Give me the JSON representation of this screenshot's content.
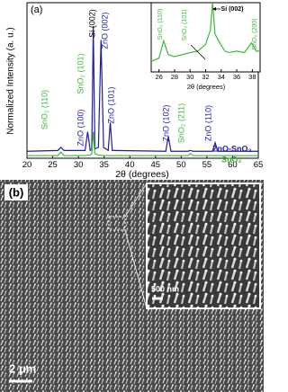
{
  "chart_data": [
    {
      "type": "line",
      "panel_label": "(a)",
      "x_label": "2θ (degrees)",
      "y_label": "Normalized Intensity (a. u.)",
      "xlim": [
        20,
        65
      ],
      "xticks": [
        20,
        25,
        30,
        35,
        40,
        45,
        50,
        55,
        60,
        65
      ],
      "ylim": [
        0,
        1
      ],
      "x": [
        20,
        26.0,
        26.6,
        27.2,
        31.3,
        31.8,
        32.3,
        32.6,
        32.9,
        33.2,
        33.9,
        34.4,
        34.9,
        35.8,
        36.2,
        36.6,
        47.0,
        47.5,
        48.0,
        51.3,
        51.8,
        52.3,
        56.1,
        56.6,
        57.1,
        65
      ],
      "series": [
        {
          "name": "ZnO-SnO₂",
          "color": "#1c1ca8",
          "values": [
            0.045,
            0.05,
            0.07,
            0.05,
            0.05,
            0.17,
            0.05,
            0.06,
            0.85,
            0.06,
            0.07,
            0.76,
            0.07,
            0.05,
            0.23,
            0.05,
            0.045,
            0.14,
            0.045,
            0.045,
            0.05,
            0.045,
            0.045,
            0.1,
            0.045,
            0.045
          ]
        },
        {
          "name": "SnO₂",
          "color": "#3cb83c",
          "values": [
            0.017,
            0.017,
            0.04,
            0.017,
            0.017,
            0.02,
            0.02,
            0.03,
            0.17,
            0.03,
            0.02,
            0.02,
            0.017,
            0.017,
            0.017,
            0.017,
            0.017,
            0.017,
            0.017,
            0.017,
            0.03,
            0.017,
            0.017,
            0.017,
            0.017,
            0.017
          ]
        }
      ],
      "annotations": [
        {
          "text": "SnO₂ (110)",
          "color": "#3cb83c"
        },
        {
          "text": "ZnO (100)",
          "color": "#1c1ca8"
        },
        {
          "text": "SnO₂ (101)",
          "color": "#3cb83c"
        },
        {
          "text": "Si (002)",
          "color": "#000000"
        },
        {
          "text": "ZnO (002)",
          "color": "#1c1ca8"
        },
        {
          "text": "ZnO (101)",
          "color": "#1c1ca8"
        },
        {
          "text": "ZnO (102)",
          "color": "#1c1ca8"
        },
        {
          "text": "SnO₂ (211)",
          "color": "#3cb83c"
        },
        {
          "text": "ZnO (110)",
          "color": "#1c1ca8"
        }
      ]
    },
    {
      "type": "line",
      "x_label": "2θ (degrees)",
      "xlim": [
        25,
        39
      ],
      "xticks": [
        26,
        28,
        30,
        32,
        34,
        36,
        38
      ],
      "ylim": [
        0,
        1
      ],
      "x": [
        25,
        26,
        26.6,
        27.2,
        28,
        29,
        30,
        31,
        32,
        32.6,
        32.9,
        33.2,
        33.9,
        34.5,
        35,
        36,
        37,
        37.9,
        38.5,
        39
      ],
      "series": [
        {
          "name": "SnO₂",
          "color": "#3cb83c",
          "values": [
            0.15,
            0.2,
            0.45,
            0.25,
            0.22,
            0.25,
            0.28,
            0.3,
            0.4,
            0.6,
            1.0,
            0.55,
            0.4,
            0.3,
            0.28,
            0.3,
            0.28,
            0.42,
            0.3,
            0.3
          ]
        }
      ],
      "annotations": [
        {
          "text": "SnO₂ (110)",
          "color": "#3cb83c"
        },
        {
          "text": "SnO₂ (101)",
          "color": "#3cb83c"
        },
        {
          "text": "Si (002)",
          "color": "#000000"
        },
        {
          "text": "SnO₂ (200)",
          "color": "#3cb83c"
        }
      ]
    }
  ],
  "figure_b": {
    "label": "(b)",
    "inset_scale": "500 nm",
    "scale": "2 μm"
  }
}
